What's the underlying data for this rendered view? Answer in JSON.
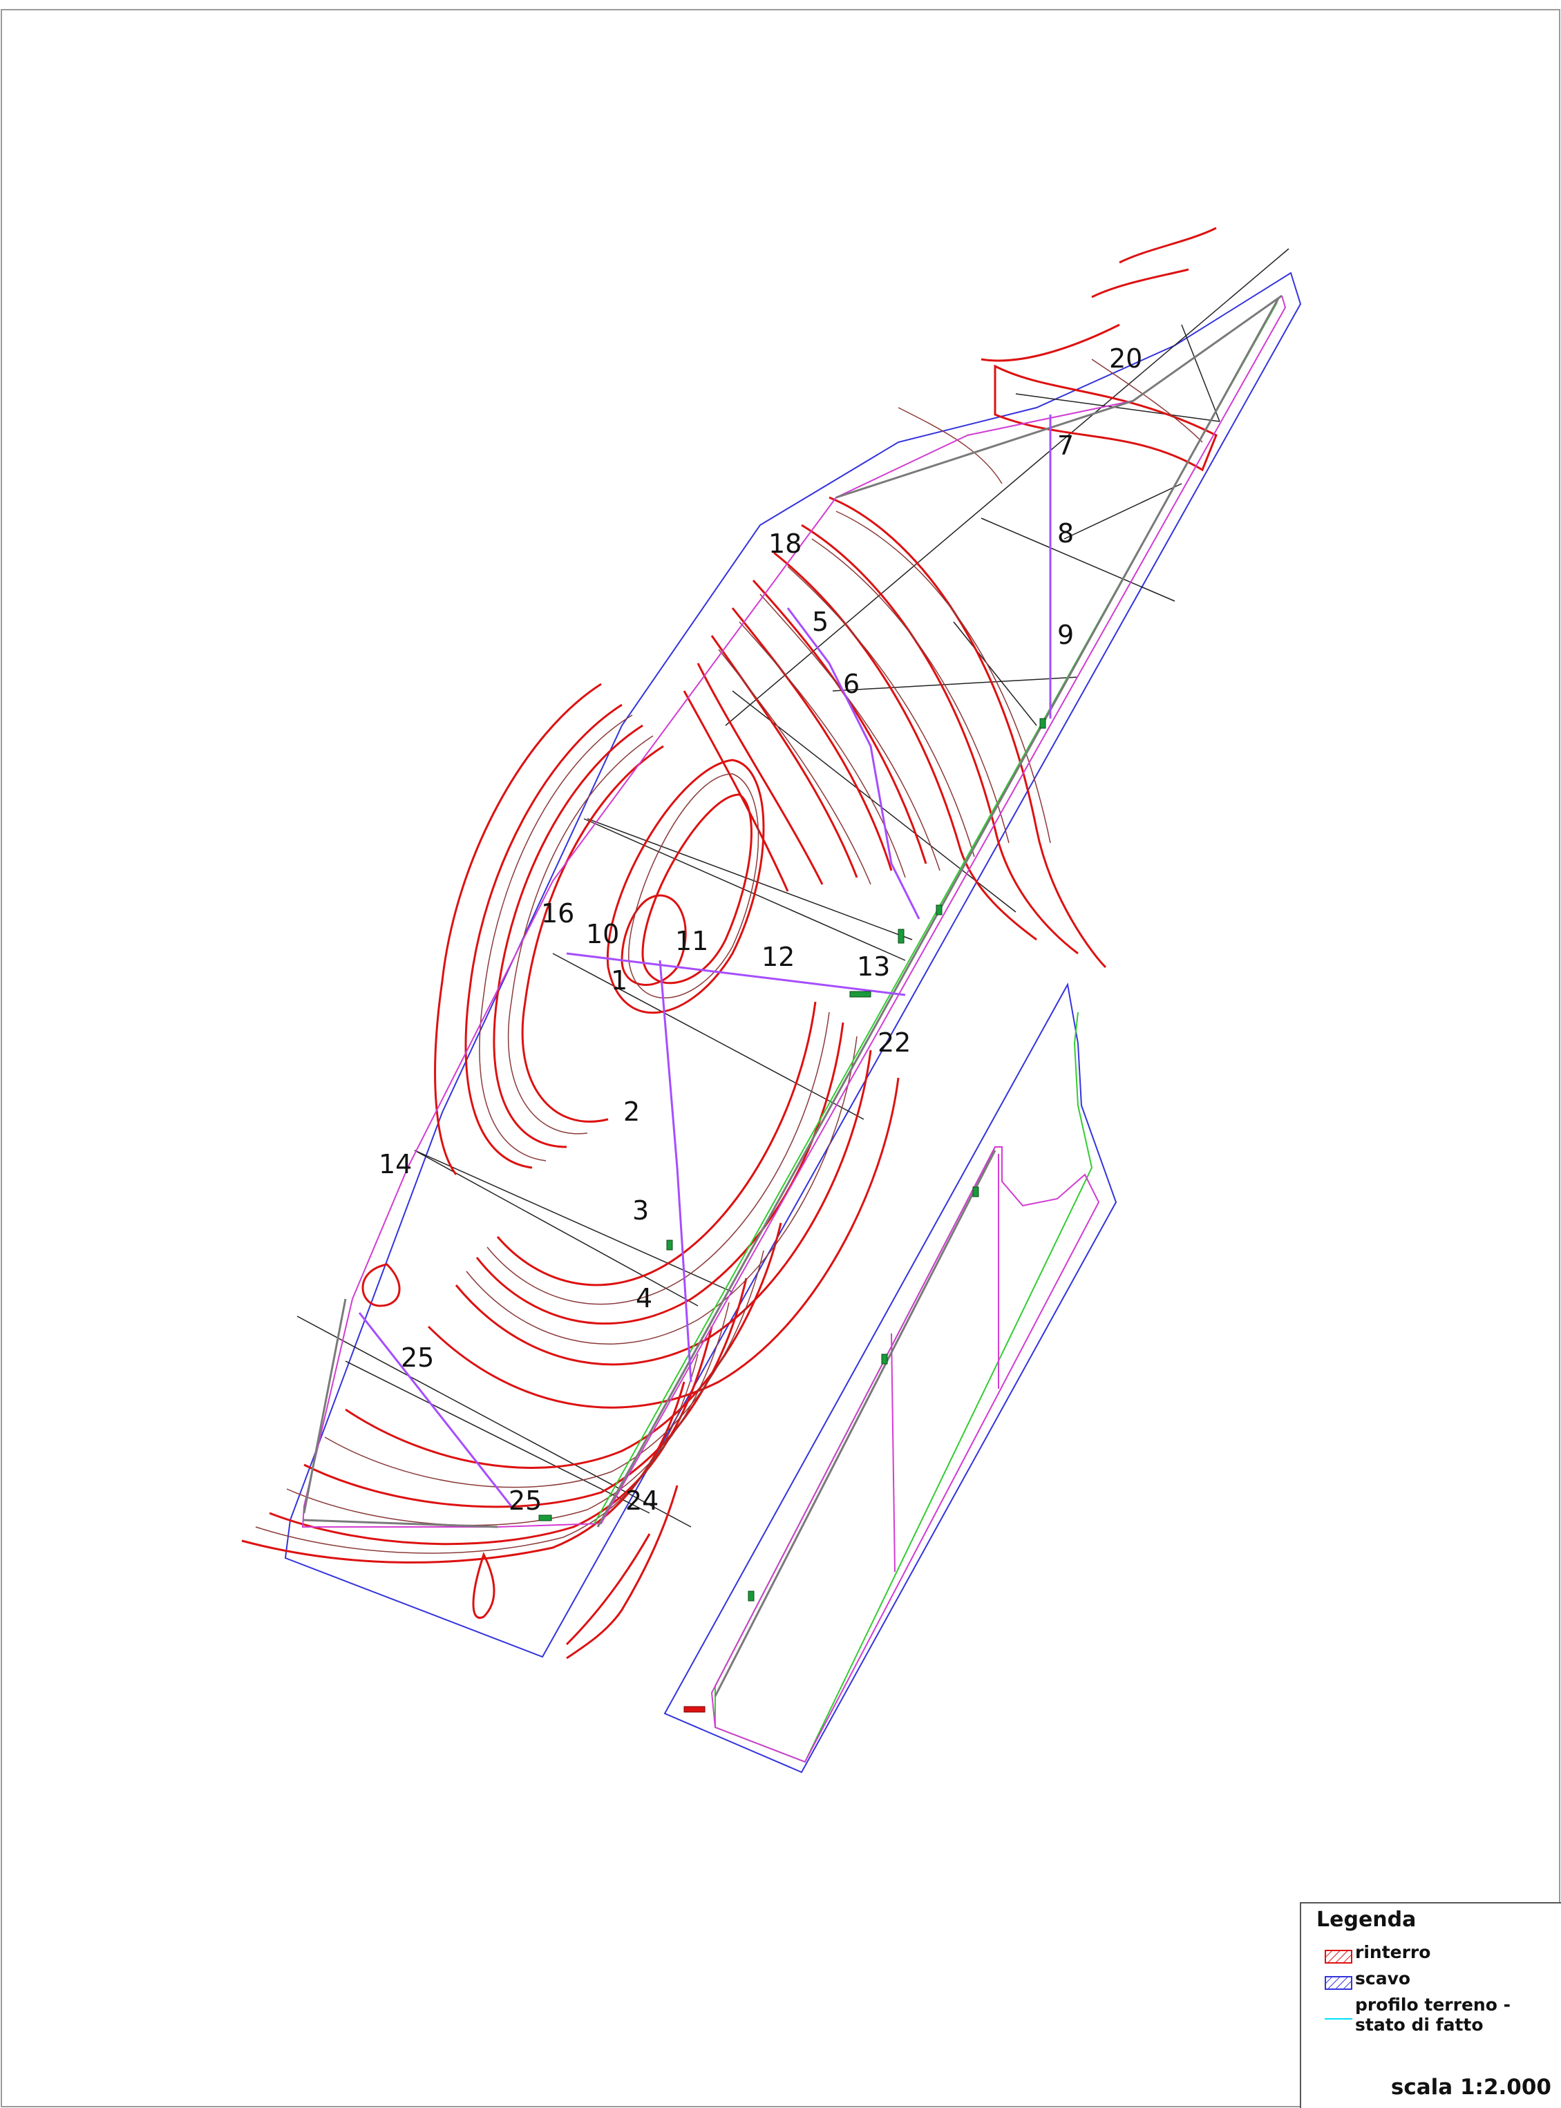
{
  "map": {
    "section_labels": [
      "1",
      "2",
      "3",
      "4",
      "5",
      "6",
      "7",
      "8",
      "9",
      "10",
      "11",
      "12",
      "13",
      "14",
      "16",
      "18",
      "20",
      "22",
      "24",
      "25",
      "25"
    ]
  },
  "colors": {
    "frame": "#9a9a9a",
    "parcel_boundary": "#3333dd",
    "contour_major": "#dd1111",
    "contour_minor": "#8b3a3a",
    "section_lines": "#222222",
    "axis_path": "#a64dff",
    "road": "#d23cd2",
    "road_center": "#7a7a7a",
    "green_edge": "#33cc33",
    "profile_line": "#00e0ff",
    "markers": "#1a9a3a"
  },
  "legend": {
    "title": "Legenda",
    "items": [
      {
        "label": "rinterro",
        "swatch": "red-hatch"
      },
      {
        "label": "scavo",
        "swatch": "blue-hatch"
      },
      {
        "label": "profilo terreno - stato di fatto",
        "swatch": "cyan-line"
      }
    ],
    "scale": "scala 1:2.000"
  }
}
